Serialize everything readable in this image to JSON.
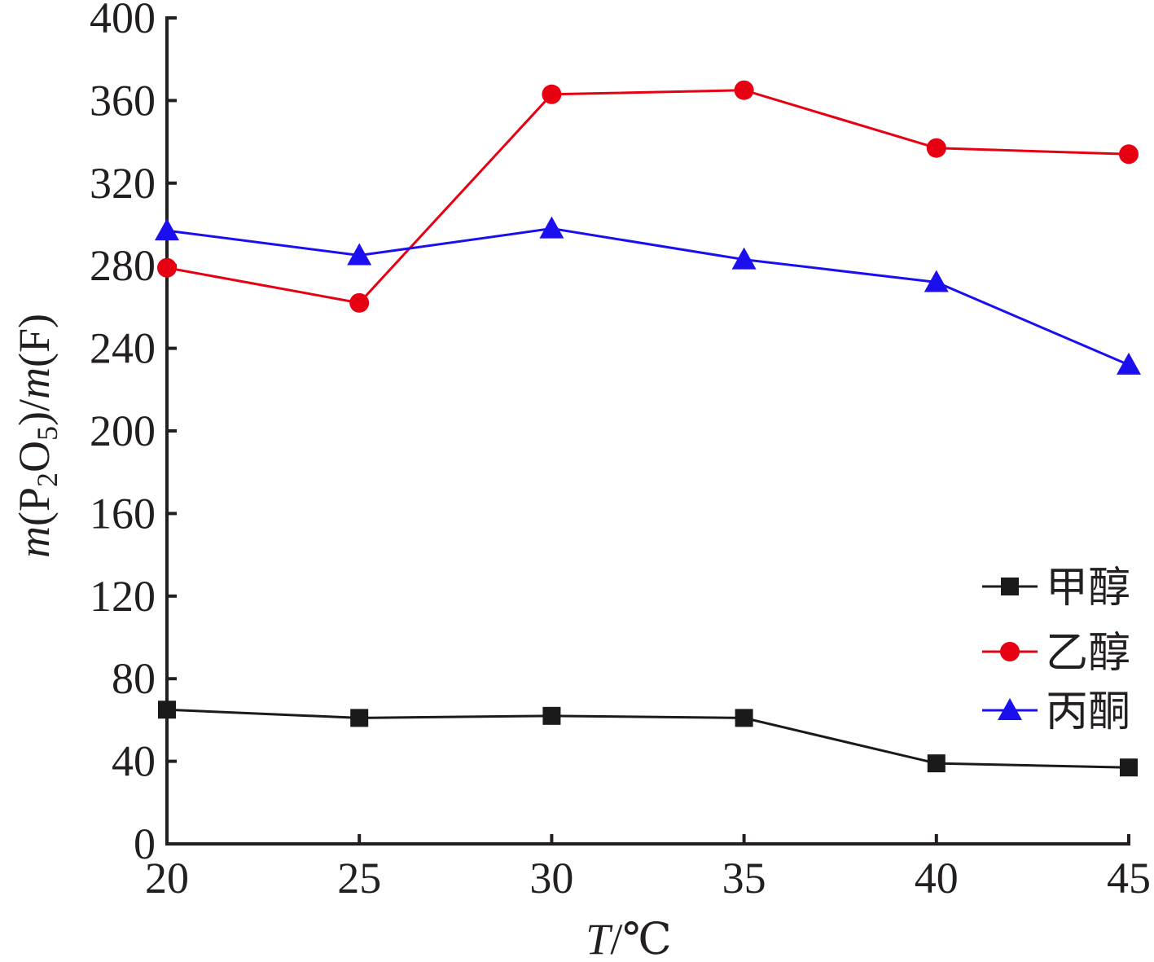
{
  "chart_data": {
    "type": "line",
    "x": [
      20,
      25,
      30,
      35,
      40,
      45
    ],
    "x_ticks": [
      "20",
      "25",
      "30",
      "35",
      "40",
      "45"
    ],
    "xlim": [
      20,
      45
    ],
    "y_ticks": [
      "0",
      "40",
      "80",
      "120",
      "160",
      "200",
      "240",
      "280",
      "320",
      "360",
      "400"
    ],
    "ylim": [
      0,
      400
    ],
    "xlabel": {
      "italic": "T",
      "rest": "/℃"
    },
    "ylabel": {
      "m1": "m",
      "open": "(P",
      "sub1": "2",
      "mid": "O",
      "sub2": "5",
      "close": ")/",
      "m2": "m",
      "tail": "(F)"
    },
    "legend_position": "right",
    "series": [
      {
        "name": "甲醇",
        "color": "#1a1a1a",
        "marker": "square",
        "values": [
          65,
          61,
          62,
          61,
          39,
          37
        ]
      },
      {
        "name": "乙醇",
        "color": "#e60012",
        "marker": "circle",
        "values": [
          279,
          262,
          363,
          365,
          337,
          334
        ]
      },
      {
        "name": "丙酮",
        "color": "#1b0ff0",
        "marker": "triangle",
        "values": [
          297,
          285,
          298,
          283,
          272,
          232
        ]
      }
    ]
  }
}
